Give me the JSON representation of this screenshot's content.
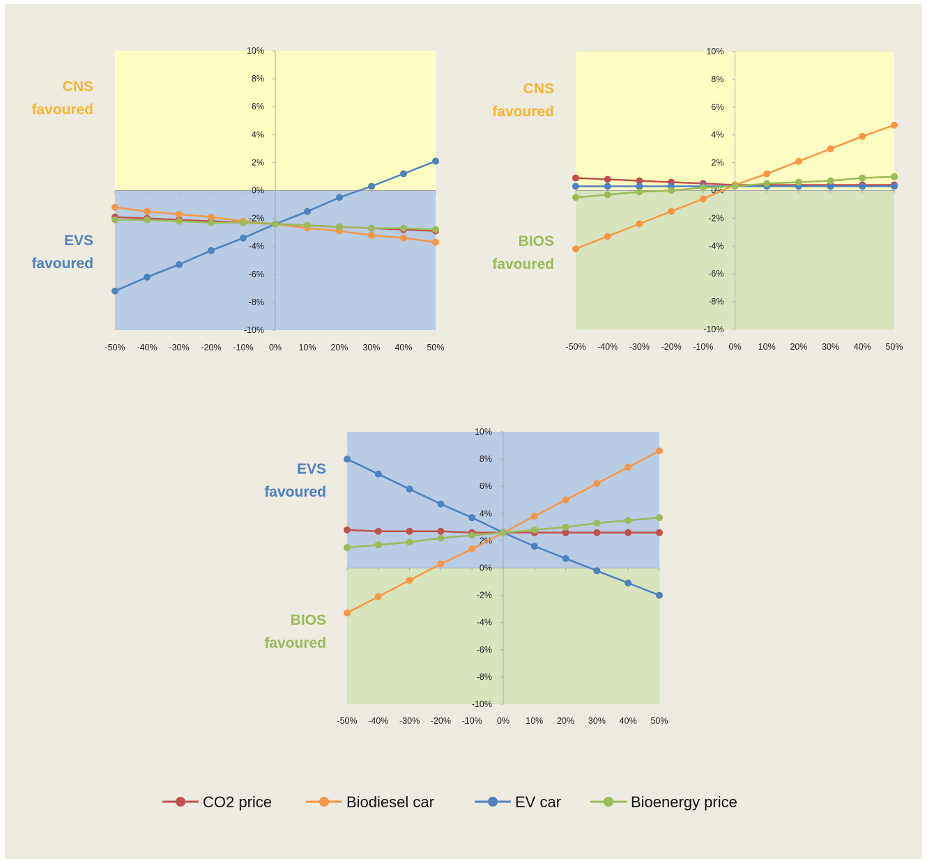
{
  "legend": [
    {
      "label": "CO2 price",
      "color": "#c0504d"
    },
    {
      "label": "Biodiesel car",
      "color": "#f79646"
    },
    {
      "label": "EV car",
      "color": "#4f81bd"
    },
    {
      "label": "Bioenergy price",
      "color": "#9bbb59"
    }
  ],
  "chart_data": [
    {
      "type": "line",
      "categories": [
        "-50%",
        "-40%",
        "-30%",
        "-20%",
        "-10%",
        "0%",
        "10%",
        "20%",
        "30%",
        "40%",
        "50%"
      ],
      "y_tick_labels": [
        "10%",
        "8%",
        "6%",
        "4%",
        "2%",
        "0%",
        "-2%",
        "-4%",
        "-6%",
        "-8%",
        "-10%"
      ],
      "ylim": [
        -10,
        10
      ],
      "grid": false,
      "zones": [
        {
          "line1": "CNS",
          "line2": "favoured",
          "fill": "#fefec2",
          "text_color": "#f7b731",
          "y_from": 0,
          "y_to": 10
        },
        {
          "line1": "EVS",
          "line2": "favoured",
          "fill": "#b8cce4",
          "text_color": "#4f81bd",
          "y_from": -10,
          "y_to": 0
        }
      ],
      "series": [
        {
          "name": "CO2 price",
          "color": "#c0504d",
          "values": [
            -1.9,
            -2.0,
            -2.1,
            -2.2,
            -2.3,
            -2.4,
            -2.5,
            -2.6,
            -2.7,
            -2.8,
            -2.9
          ]
        },
        {
          "name": "Biodiesel car",
          "color": "#f79646",
          "values": [
            -1.2,
            -1.5,
            -1.7,
            -1.9,
            -2.2,
            -2.4,
            -2.7,
            -2.9,
            -3.2,
            -3.4,
            -3.7
          ]
        },
        {
          "name": "EV car",
          "color": "#4f81bd",
          "values": [
            -7.2,
            -6.2,
            -5.3,
            -4.3,
            -3.4,
            -2.4,
            -1.5,
            -0.5,
            0.3,
            1.2,
            2.1
          ]
        },
        {
          "name": "Bioenergy price",
          "color": "#9bbb59",
          "values": [
            -2.1,
            -2.1,
            -2.2,
            -2.3,
            -2.3,
            -2.4,
            -2.5,
            -2.6,
            -2.7,
            -2.7,
            -2.8
          ]
        }
      ]
    },
    {
      "type": "line",
      "categories": [
        "-50%",
        "-40%",
        "-30%",
        "-20%",
        "-10%",
        "0%",
        "10%",
        "20%",
        "30%",
        "40%",
        "50%"
      ],
      "y_tick_labels": [
        "10%",
        "8%",
        "6%",
        "4%",
        "2%",
        "0%",
        "-2%",
        "-4%",
        "-6%",
        "-8%",
        "-10%"
      ],
      "ylim": [
        -10,
        10
      ],
      "grid": false,
      "zones": [
        {
          "line1": "CNS",
          "line2": "favoured",
          "fill": "#fefec2",
          "text_color": "#f7b731",
          "y_from": 0,
          "y_to": 10
        },
        {
          "line1": "BIOS",
          "line2": "favoured",
          "fill": "#d7e4bd",
          "text_color": "#9bbb59",
          "y_from": -10,
          "y_to": 0
        }
      ],
      "series": [
        {
          "name": "CO2 price",
          "color": "#c0504d",
          "values": [
            0.9,
            0.8,
            0.7,
            0.6,
            0.5,
            0.4,
            0.4,
            0.4,
            0.4,
            0.4,
            0.4
          ]
        },
        {
          "name": "Biodiesel car",
          "color": "#f79646",
          "values": [
            -4.2,
            -3.3,
            -2.4,
            -1.5,
            -0.6,
            0.4,
            1.2,
            2.1,
            3.0,
            3.9,
            4.7
          ]
        },
        {
          "name": "EV car",
          "color": "#4f81bd",
          "values": [
            0.3,
            0.3,
            0.3,
            0.3,
            0.3,
            0.3,
            0.3,
            0.3,
            0.3,
            0.3,
            0.3
          ]
        },
        {
          "name": "Bioenergy price",
          "color": "#9bbb59",
          "values": [
            -0.5,
            -0.3,
            -0.1,
            0.0,
            0.2,
            0.3,
            0.5,
            0.6,
            0.7,
            0.9,
            1.0
          ]
        }
      ]
    },
    {
      "type": "line",
      "categories": [
        "-50%",
        "-40%",
        "-30%",
        "-20%",
        "-10%",
        "0%",
        "10%",
        "20%",
        "30%",
        "40%",
        "50%"
      ],
      "y_tick_labels": [
        "10%",
        "8%",
        "6%",
        "4%",
        "2%",
        "0%",
        "-2%",
        "-4%",
        "-6%",
        "-8%",
        "-10%"
      ],
      "ylim": [
        -10,
        10
      ],
      "grid": false,
      "zones": [
        {
          "line1": "EVS",
          "line2": "favoured",
          "fill": "#b8cce4",
          "text_color": "#4f81bd",
          "y_from": 0,
          "y_to": 10
        },
        {
          "line1": "BIOS",
          "line2": "favoured",
          "fill": "#d7e4bd",
          "text_color": "#9bbb59",
          "y_from": -10,
          "y_to": 0
        }
      ],
      "series": [
        {
          "name": "CO2 price",
          "color": "#c0504d",
          "values": [
            2.8,
            2.7,
            2.7,
            2.7,
            2.6,
            2.6,
            2.6,
            2.6,
            2.6,
            2.6,
            2.6
          ]
        },
        {
          "name": "Biodiesel car",
          "color": "#f79646",
          "values": [
            -3.3,
            -2.1,
            -0.9,
            0.3,
            1.4,
            2.6,
            3.8,
            5.0,
            6.2,
            7.4,
            8.6
          ]
        },
        {
          "name": "EV car",
          "color": "#4f81bd",
          "values": [
            8.0,
            6.9,
            5.8,
            4.7,
            3.7,
            2.6,
            1.6,
            0.7,
            -0.2,
            -1.1,
            -2.0
          ]
        },
        {
          "name": "Bioenergy price",
          "color": "#9bbb59",
          "values": [
            1.5,
            1.7,
            1.9,
            2.2,
            2.4,
            2.6,
            2.8,
            3.0,
            3.3,
            3.5,
            3.7
          ]
        }
      ]
    }
  ]
}
